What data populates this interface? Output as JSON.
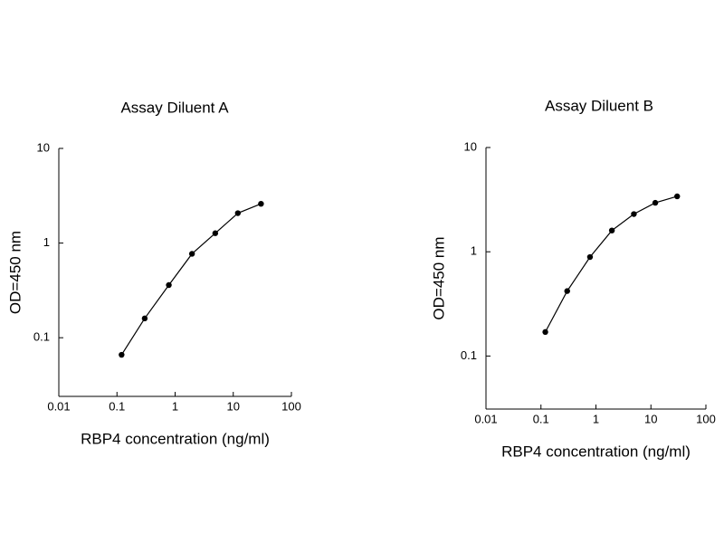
{
  "chart_data": [
    {
      "type": "line",
      "title": "Assay Diluent A",
      "x_label": "RBP4 concentration (ng/ml)",
      "y_label": "OD=450 nm",
      "x": [
        0.12,
        0.3,
        0.78,
        1.95,
        4.9,
        12,
        30
      ],
      "series": [
        {
          "color": "#000000",
          "values": [
            0.066,
            0.16,
            0.36,
            0.77,
            1.27,
            2.07,
            2.6
          ]
        }
      ],
      "xlim": [
        0.01,
        100
      ],
      "ylim": [
        0.024,
        10
      ],
      "xticks": [
        0.01,
        0.1,
        1,
        10,
        100
      ],
      "yticks": [
        0.1,
        1,
        10
      ],
      "xscale": "log",
      "yscale": "log",
      "grid": false
    },
    {
      "type": "line",
      "title": "Assay Diluent B",
      "x_label": "RBP4 concentration (ng/ml)",
      "y_label": "OD=450 nm",
      "x": [
        0.12,
        0.3,
        0.78,
        1.95,
        4.9,
        12,
        30
      ],
      "series": [
        {
          "color": "#000000",
          "values": [
            0.17,
            0.42,
            0.89,
            1.6,
            2.3,
            2.95,
            3.4
          ]
        }
      ],
      "xlim": [
        0.01,
        100
      ],
      "ylim": [
        0.031,
        10
      ],
      "xticks": [
        0.01,
        0.1,
        1,
        10,
        100
      ],
      "yticks": [
        0.1,
        1,
        10
      ],
      "xscale": "log",
      "yscale": "log",
      "grid": false
    }
  ]
}
